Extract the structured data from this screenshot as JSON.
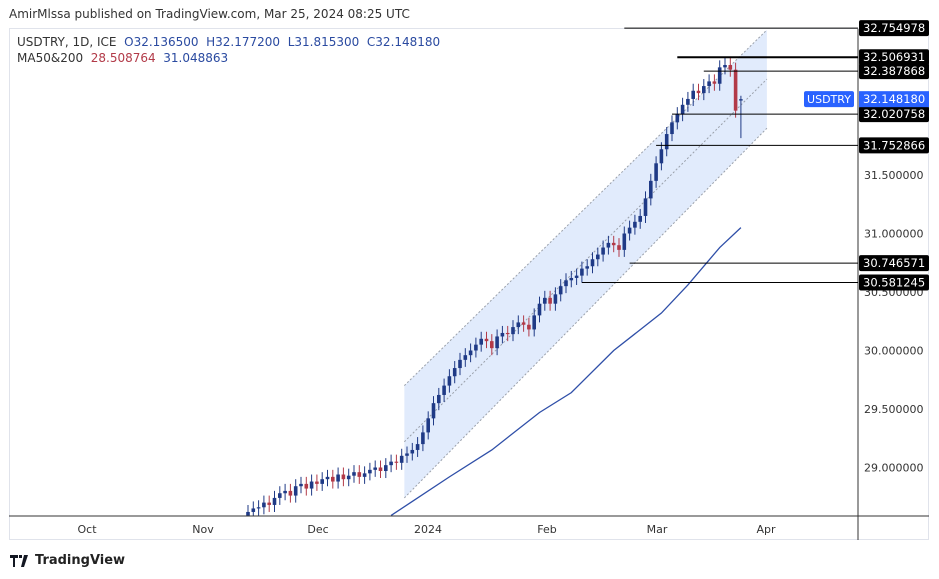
{
  "header": {
    "published": "AmirMlssa published on TradingView.com, Mar 25, 2024 08:25 UTC"
  },
  "legend": {
    "symbol": "USDTRY, 1D, ICE",
    "open": "O32.136500",
    "high": "H32.177200",
    "low": "L31.815300",
    "close": "C32.148180",
    "ma_label": "MA50&200",
    "ma50": "28.508764",
    "ma200": "31.048863"
  },
  "footer": {
    "brand": "TradingView",
    "logo_icon": "tradingview-logo-icon"
  },
  "chart_data": {
    "type": "candlestick",
    "symbol": "USDTRY",
    "last_price_label": "USDTRY",
    "last_price": "32.148180",
    "colors": {
      "up": "#1f3a86",
      "down": "#b23a48",
      "ma": "#2f4fa8",
      "channel": "#dce8fb",
      "last_price": "#2962ff"
    },
    "ylim": [
      28.55,
      32.9
    ],
    "y_ticks": [
      "31.500000",
      "31.000000",
      "30.500000",
      "30.000000",
      "29.500000",
      "29.000000"
    ],
    "x_ticks": [
      "Oct",
      "Nov",
      "Dec",
      "2024",
      "Feb",
      "Mar",
      "Apr"
    ],
    "closes": [
      28.62,
      28.65,
      28.66,
      28.7,
      28.68,
      28.74,
      28.78,
      28.8,
      28.76,
      28.84,
      28.86,
      28.82,
      28.88,
      28.86,
      28.9,
      28.92,
      28.88,
      28.94,
      28.9,
      28.93,
      28.96,
      28.92,
      28.95,
      28.98,
      29.0,
      28.97,
      29.02,
      29.05,
      29.04,
      29.1,
      29.12,
      29.15,
      29.2,
      29.3,
      29.42,
      29.55,
      29.62,
      29.7,
      29.78,
      29.85,
      29.92,
      29.96,
      30.0,
      30.05,
      30.1,
      30.08,
      30.02,
      30.12,
      30.15,
      30.14,
      30.2,
      30.24,
      30.22,
      30.18,
      30.3,
      30.4,
      30.45,
      30.4,
      30.48,
      30.55,
      30.6,
      30.62,
      30.64,
      30.7,
      30.72,
      30.78,
      30.82,
      30.88,
      30.92,
      30.9,
      30.86,
      31.0,
      31.05,
      31.1,
      31.15,
      31.3,
      31.45,
      31.6,
      31.72,
      31.85,
      31.95,
      32.02,
      32.1,
      32.15,
      32.22,
      32.2,
      32.26,
      32.3,
      32.28,
      32.42,
      32.44,
      32.4,
      32.05,
      32.148
    ],
    "last_candle": {
      "open": 32.1365,
      "high": 32.1772,
      "low": 31.8153,
      "close": 32.14818
    },
    "ma200": [
      [
        27,
        28.59
      ],
      [
        31,
        28.71
      ],
      [
        38,
        28.92
      ],
      [
        46,
        29.15
      ],
      [
        55,
        29.47
      ],
      [
        61,
        29.64
      ],
      [
        69,
        30.0
      ],
      [
        78,
        30.32
      ],
      [
        83,
        30.56
      ],
      [
        89,
        30.88
      ],
      [
        93,
        31.05
      ]
    ],
    "levels": [
      {
        "label": "32.754978",
        "value": 32.754978,
        "from": 71
      },
      {
        "label": "32.506931",
        "value": 32.506931,
        "from": 81
      },
      {
        "label": "32.387868",
        "value": 32.387868,
        "from": 86
      },
      {
        "label": "32.020758",
        "value": 32.020758,
        "from": 80
      },
      {
        "label": "31.752866",
        "value": 31.752866,
        "from": 77
      },
      {
        "label": "30.746571",
        "value": 30.746571,
        "from": 72
      },
      {
        "label": "30.581245",
        "value": 30.581245,
        "from": 63
      }
    ],
    "channel": {
      "start": {
        "upper": 29.7,
        "lower": 28.74
      },
      "end": {
        "upper": 32.74,
        "lower": 31.9
      }
    }
  }
}
